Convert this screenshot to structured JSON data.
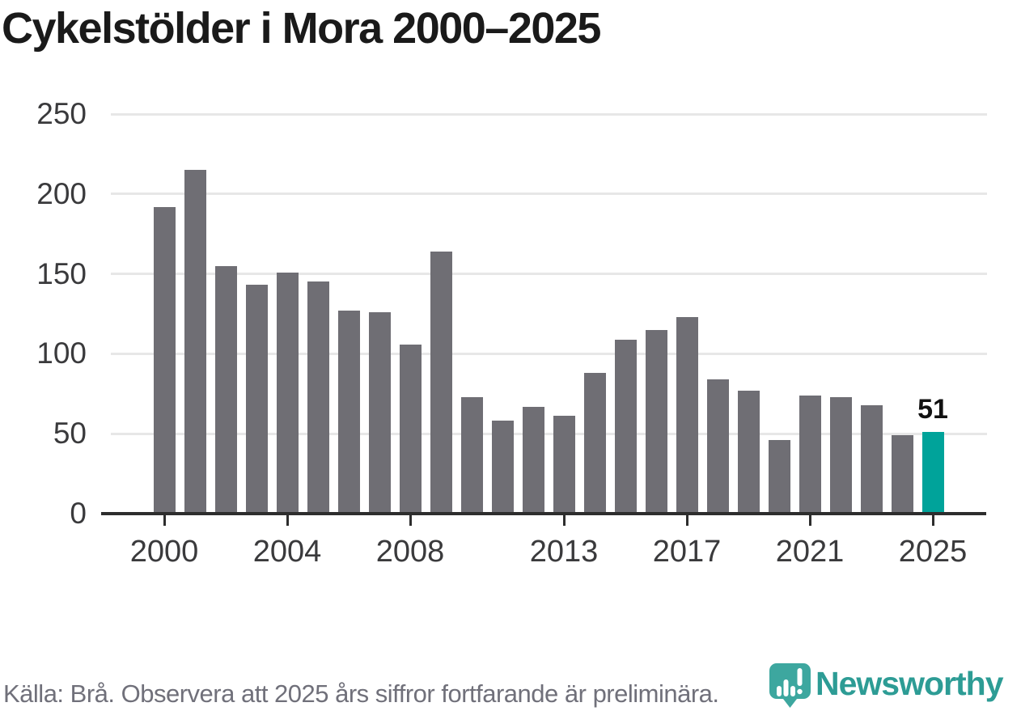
{
  "title": "Cykelstölder i Mora 2000–2025",
  "footer": {
    "source_text": "Källa: Brå. Observera att 2025 års siffror fortfarande är preliminära."
  },
  "brand": {
    "name": "Newsworthy",
    "logo_icon": "speech-bubble-bar-chart-icon",
    "icon_color": "#3da79f",
    "text_color": "#2d9c95"
  },
  "colors": {
    "bar": "#6f6e74",
    "highlight_bar": "#00a39a",
    "axis": "#2d2d2d",
    "grid": "#e7e7e7",
    "tick_label": "#3a3a3c",
    "title": "#1a1a1a",
    "footer_text": "#70707a",
    "annotation": "#111111"
  },
  "chart_data": {
    "type": "bar",
    "title": "Cykelstölder i Mora 2000–2025",
    "xlabel": "",
    "ylabel": "",
    "ylim": [
      0,
      250
    ],
    "y_ticks": [
      0,
      50,
      100,
      150,
      200,
      250
    ],
    "x_tick_labels": [
      2000,
      2004,
      2008,
      2013,
      2017,
      2021,
      2025
    ],
    "grid": true,
    "legend": false,
    "x": [
      2000,
      2001,
      2002,
      2003,
      2004,
      2005,
      2006,
      2007,
      2008,
      2009,
      2010,
      2011,
      2012,
      2013,
      2014,
      2015,
      2016,
      2017,
      2018,
      2019,
      2020,
      2021,
      2022,
      2023,
      2024,
      2025
    ],
    "values": [
      192,
      215,
      155,
      143,
      151,
      145,
      127,
      126,
      106,
      164,
      73,
      58,
      67,
      61,
      88,
      109,
      115,
      123,
      84,
      77,
      46,
      74,
      73,
      68,
      49,
      51
    ],
    "highlight_year": 2025,
    "highlight_value_label": "51"
  }
}
